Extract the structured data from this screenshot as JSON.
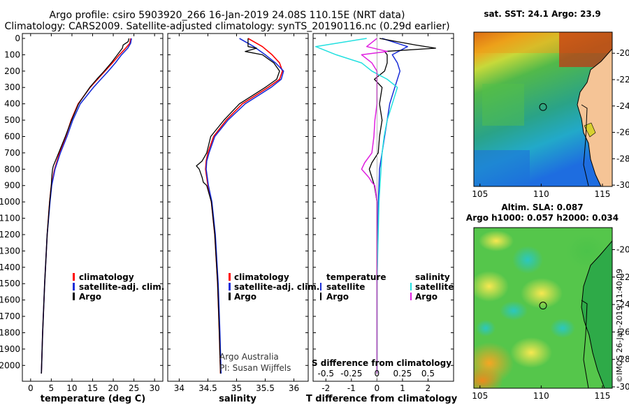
{
  "header": {
    "title_line1": "Argo profile: csiro 5903920_266 16-Jan-2019 24.08S 110.15E (NRT data)",
    "title_line2": "Climatology: CARS2009. Satellite-adjusted climatology: synTS_20190116.nc (0.29d earlier)"
  },
  "watermark": "©IMOS 26-Jan-2019 11:40:09",
  "colors": {
    "climatology": "#ff0000",
    "satellite": "#1a2ed8",
    "argo": "#000000",
    "sat_salinity": "#22e0e0",
    "argo_salinity": "#e020e0"
  },
  "chart_data": [
    {
      "type": "line",
      "panel": "temperature",
      "xlabel": "temperature (deg C)",
      "ylabel": "",
      "xlim": [
        -2,
        32
      ],
      "ylim": [
        2060,
        0
      ],
      "xticks": [
        0,
        5,
        10,
        15,
        20,
        25,
        30
      ],
      "yticks": [
        0,
        100,
        200,
        300,
        400,
        500,
        600,
        700,
        800,
        900,
        1000,
        1100,
        1200,
        1300,
        1400,
        1500,
        1600,
        1700,
        1800,
        1900,
        2000
      ],
      "legend": [
        "climatology",
        "satellite-adj. clim.",
        "Argo"
      ],
      "series": [
        {
          "name": "climatology",
          "depth": [
            0,
            30,
            60,
            100,
            150,
            200,
            250,
            300,
            400,
            500,
            600,
            700,
            800,
            900,
            1000,
            1200,
            1500,
            1800,
            2050
          ],
          "values": [
            24.2,
            24.0,
            23.0,
            21.5,
            19.8,
            18.0,
            16.2,
            14.4,
            11.5,
            9.8,
            8.5,
            7.0,
            5.8,
            5.0,
            4.6,
            4.0,
            3.4,
            2.9,
            2.6
          ]
        },
        {
          "name": "satellite-adj. clim.",
          "depth": [
            0,
            30,
            60,
            100,
            150,
            200,
            250,
            300,
            400,
            500,
            600,
            700,
            800,
            900,
            1000,
            1200,
            1500,
            1800,
            2050
          ],
          "values": [
            24.4,
            24.2,
            23.5,
            22.0,
            20.5,
            18.8,
            17.0,
            15.2,
            12.0,
            10.2,
            8.8,
            7.2,
            5.9,
            5.1,
            4.7,
            4.0,
            3.4,
            2.9,
            2.6
          ]
        },
        {
          "name": "Argo",
          "depth": [
            0,
            20,
            40,
            60,
            100,
            150,
            200,
            250,
            300,
            400,
            500,
            600,
            700,
            780,
            800,
            850,
            900,
            1000,
            1200,
            1500,
            1800,
            2050
          ],
          "values": [
            23.8,
            23.6,
            22.4,
            22.2,
            21.0,
            19.5,
            17.8,
            16.0,
            14.3,
            11.6,
            9.9,
            8.4,
            6.8,
            5.5,
            5.3,
            5.1,
            5.0,
            4.6,
            4.0,
            3.4,
            2.9,
            2.6
          ]
        }
      ]
    },
    {
      "type": "line",
      "panel": "salinity",
      "xlabel": "salinity",
      "ylabel": "",
      "xlim": [
        33.8,
        36.25
      ],
      "ylim": [
        2060,
        0
      ],
      "xticks": [
        34,
        34.5,
        35,
        35.5,
        36
      ],
      "legend": [
        "climatology",
        "satellite-adj. clim.",
        "Argo"
      ],
      "annotation": [
        "Argo Australia",
        "PI: Susan Wijffels"
      ],
      "series": [
        {
          "name": "climatology",
          "depth": [
            0,
            50,
            100,
            150,
            200,
            250,
            300,
            400,
            500,
            600,
            700,
            750,
            800,
            900,
            1000,
            1200,
            1500,
            1800,
            2050
          ],
          "values": [
            35.2,
            35.45,
            35.62,
            35.75,
            35.8,
            35.75,
            35.55,
            35.1,
            34.82,
            34.6,
            34.5,
            34.47,
            34.46,
            34.5,
            34.56,
            34.62,
            34.67,
            34.7,
            34.72
          ]
        },
        {
          "name": "satellite-adj. clim.",
          "depth": [
            0,
            50,
            100,
            150,
            200,
            250,
            300,
            400,
            500,
            600,
            700,
            750,
            800,
            900,
            1000,
            1200,
            1500,
            1800,
            2050
          ],
          "values": [
            35.05,
            35.3,
            35.5,
            35.68,
            35.82,
            35.78,
            35.6,
            35.15,
            34.85,
            34.62,
            34.52,
            34.48,
            34.47,
            34.51,
            34.57,
            34.63,
            34.68,
            34.71,
            34.73
          ]
        },
        {
          "name": "Argo",
          "depth": [
            0,
            50,
            60,
            80,
            100,
            150,
            200,
            250,
            300,
            400,
            500,
            600,
            700,
            750,
            780,
            800,
            850,
            880,
            900,
            950,
            1000,
            1200,
            1500,
            1800,
            2050
          ],
          "values": [
            35.2,
            35.2,
            35.35,
            35.15,
            35.45,
            35.65,
            35.75,
            35.7,
            35.5,
            35.05,
            34.78,
            34.55,
            34.48,
            34.4,
            34.3,
            34.35,
            34.4,
            34.42,
            34.48,
            34.52,
            34.56,
            34.62,
            34.67,
            34.7,
            34.72
          ]
        }
      ]
    },
    {
      "type": "line",
      "panel": "difference",
      "xlabel": "T difference from climatology",
      "ylabel": "",
      "xlim": [
        -2.5,
        3.0
      ],
      "ylim": [
        2060,
        0
      ],
      "xticks": [
        -2,
        -1,
        0,
        1,
        2
      ],
      "xticks_secondary": [
        -0.5,
        -0.25,
        0,
        0.25,
        0.5
      ],
      "xticks_secondary_labels": [
        "-0.5",
        "-0.25",
        "0",
        "0.25",
        "0.5"
      ],
      "secondary_label": "S difference from climatology",
      "legend_temperature": {
        "title": "temperature",
        "items": [
          "satellite",
          "Argo"
        ]
      },
      "legend_salinity": {
        "title": "salinity",
        "items": [
          "satellite",
          "Argo"
        ]
      },
      "series": [
        {
          "name": "temperature satellite",
          "depth": [
            0,
            50,
            100,
            150,
            200,
            250,
            300,
            400,
            500,
            600,
            700,
            800,
            900,
            1000,
            1500,
            2050
          ],
          "values": [
            0.2,
            1.2,
            0.6,
            0.8,
            0.9,
            0.8,
            0.7,
            0.5,
            0.4,
            0.3,
            0.2,
            0.1,
            0.08,
            0.05,
            0.0,
            0.0
          ]
        },
        {
          "name": "temperature Argo",
          "depth": [
            0,
            40,
            60,
            80,
            100,
            150,
            200,
            250,
            300,
            400,
            500,
            600,
            700,
            760,
            800,
            850,
            900,
            1000,
            1500,
            2050
          ],
          "values": [
            0.1,
            1.5,
            2.3,
            0.3,
            0.4,
            0.4,
            0.3,
            -0.1,
            0.2,
            0.1,
            0.2,
            0.1,
            0.05,
            -0.2,
            -0.3,
            -0.2,
            -0.1,
            0.0,
            0.0,
            0.0
          ]
        },
        {
          "name": "salinity satellite",
          "depth": [
            0,
            50,
            100,
            150,
            200,
            250,
            300,
            400,
            500,
            600,
            700,
            800,
            900,
            1000,
            1500,
            2050
          ],
          "values": [
            -0.1,
            -0.6,
            -0.4,
            -0.15,
            -0.05,
            0.1,
            0.2,
            0.15,
            0.1,
            0.07,
            0.05,
            0.04,
            0.03,
            0.02,
            0.0,
            0.0
          ]
        },
        {
          "name": "salinity Argo",
          "depth": [
            0,
            50,
            80,
            100,
            150,
            200,
            250,
            300,
            400,
            500,
            600,
            700,
            760,
            800,
            850,
            880,
            900,
            1000,
            1500,
            2050
          ],
          "values": [
            0.0,
            -0.1,
            0.1,
            -0.15,
            -0.05,
            0.0,
            0.0,
            0.0,
            0.0,
            -0.02,
            -0.03,
            -0.05,
            -0.12,
            -0.15,
            -0.08,
            -0.05,
            -0.02,
            0.0,
            0.0,
            0.0
          ]
        }
      ]
    },
    {
      "type": "heatmap",
      "panel": "sst_map",
      "title": "sat. SST: 24.1 Argo: 23.9",
      "xticks": [
        105,
        110,
        115
      ],
      "yticks": [
        -20,
        -22,
        -24,
        -26,
        -28,
        -30
      ],
      "xlim": [
        104.5,
        115.8
      ],
      "ylim": [
        -30.1,
        -18.4
      ],
      "marker": {
        "lon": 110.15,
        "lat": -24.08
      }
    },
    {
      "type": "heatmap",
      "panel": "sla_map",
      "title": "Altim. SLA: 0.087",
      "subtitle": "Argo h1000: 0.057 h2000: 0.034",
      "xticks": [
        105,
        110,
        115
      ],
      "yticks": [
        -20,
        -22,
        -24,
        -26,
        -28,
        -30
      ],
      "xlim": [
        104.5,
        115.8
      ],
      "ylim": [
        -30.1,
        -18.4
      ],
      "marker": {
        "lon": 110.15,
        "lat": -24.08
      }
    }
  ]
}
